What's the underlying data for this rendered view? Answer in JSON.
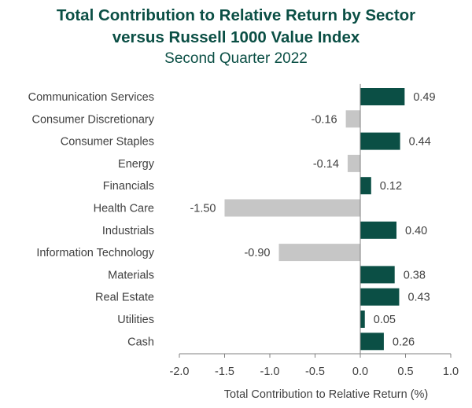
{
  "chart_data": {
    "type": "bar",
    "orientation": "horizontal",
    "title_line1": "Total Contribution to Relative Return by Sector",
    "title_line2": "versus Russell 1000 Value Index",
    "subtitle": "Second Quarter 2022",
    "xlabel": "Total Contribution to Relative Return (%)",
    "xlim": [
      -2.0,
      1.0
    ],
    "xticks": [
      "-2.0",
      "-1.5",
      "-1.0",
      "-0.5",
      "0.0",
      "0.5",
      "1.0"
    ],
    "xtick_values": [
      -2.0,
      -1.5,
      -1.0,
      -0.5,
      0.0,
      0.5,
      1.0
    ],
    "grid": false,
    "categories": [
      "Communication Services",
      "Consumer Discretionary",
      "Consumer Staples",
      "Energy",
      "Financials",
      "Health Care",
      "Industrials",
      "Information Technology",
      "Materials",
      "Real Estate",
      "Utilities",
      "Cash"
    ],
    "values": [
      0.49,
      -0.16,
      0.44,
      -0.14,
      0.12,
      -1.5,
      0.4,
      -0.9,
      0.38,
      0.43,
      0.05,
      0.26
    ],
    "value_labels": [
      "0.49",
      "-0.16",
      "0.44",
      "-0.14",
      "0.12",
      "-1.50",
      "0.40",
      "-0.90",
      "0.38",
      "0.43",
      "0.05",
      "0.26"
    ],
    "colors": {
      "positive": "#0b4f45",
      "negative": "#c6c6c6",
      "axis": "#808080",
      "text": "#404040",
      "title": "#0b4f45"
    }
  }
}
